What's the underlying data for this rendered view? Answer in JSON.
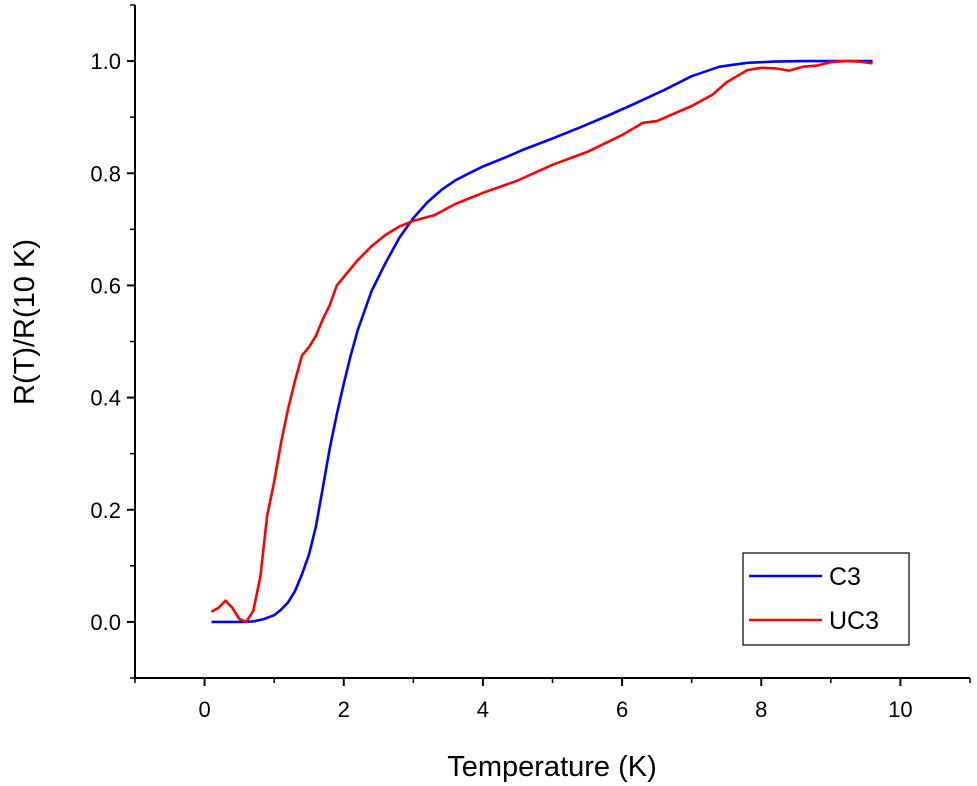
{
  "chart_data": {
    "type": "line",
    "xlabel": "Temperature (K)",
    "ylabel": "R(T)/R(10 K)",
    "xlim": [
      -1,
      11
    ],
    "ylim": [
      -0.1,
      1.1
    ],
    "x_ticks": [
      0,
      2,
      4,
      6,
      8,
      10
    ],
    "x_tick_labels": [
      "0",
      "2",
      "4",
      "6",
      "8",
      "10"
    ],
    "y_ticks": [
      0,
      0.2,
      0.4,
      0.6,
      0.8,
      1.0
    ],
    "y_tick_labels": [
      "0.0",
      "0.2",
      "0.4",
      "0.6",
      "0.8",
      "1.0"
    ],
    "grid": false,
    "legend": "bottom-right",
    "series": [
      {
        "name": "C3",
        "color": "#0000ff",
        "points": [
          [
            0.1,
            0.0
          ],
          [
            0.3,
            0.0
          ],
          [
            0.5,
            0.0
          ],
          [
            0.7,
            0.001
          ],
          [
            0.85,
            0.005
          ],
          [
            1.0,
            0.012
          ],
          [
            1.1,
            0.022
          ],
          [
            1.2,
            0.035
          ],
          [
            1.3,
            0.055
          ],
          [
            1.4,
            0.085
          ],
          [
            1.5,
            0.12
          ],
          [
            1.6,
            0.17
          ],
          [
            1.7,
            0.24
          ],
          [
            1.8,
            0.31
          ],
          [
            1.9,
            0.37
          ],
          [
            2.0,
            0.425
          ],
          [
            2.1,
            0.475
          ],
          [
            2.2,
            0.52
          ],
          [
            2.4,
            0.59
          ],
          [
            2.6,
            0.64
          ],
          [
            2.8,
            0.685
          ],
          [
            3.0,
            0.72
          ],
          [
            3.2,
            0.748
          ],
          [
            3.4,
            0.77
          ],
          [
            3.6,
            0.787
          ],
          [
            3.8,
            0.8
          ],
          [
            4.0,
            0.812
          ],
          [
            4.3,
            0.827
          ],
          [
            4.6,
            0.843
          ],
          [
            5.0,
            0.862
          ],
          [
            5.4,
            0.882
          ],
          [
            5.8,
            0.903
          ],
          [
            6.2,
            0.925
          ],
          [
            6.6,
            0.948
          ],
          [
            7.0,
            0.973
          ],
          [
            7.4,
            0.99
          ],
          [
            7.8,
            0.997
          ],
          [
            8.2,
            0.999
          ],
          [
            8.6,
            1.0
          ],
          [
            9.0,
            1.0
          ],
          [
            9.3,
            1.0
          ],
          [
            9.6,
            1.0
          ]
        ]
      },
      {
        "name": "UC3",
        "color": "#ff0000",
        "points": [
          [
            0.1,
            0.018
          ],
          [
            0.2,
            0.025
          ],
          [
            0.3,
            0.038
          ],
          [
            0.4,
            0.025
          ],
          [
            0.5,
            0.005
          ],
          [
            0.6,
            0.0
          ],
          [
            0.7,
            0.02
          ],
          [
            0.8,
            0.08
          ],
          [
            0.9,
            0.19
          ],
          [
            1.0,
            0.25
          ],
          [
            1.1,
            0.32
          ],
          [
            1.2,
            0.38
          ],
          [
            1.3,
            0.43
          ],
          [
            1.4,
            0.475
          ],
          [
            1.5,
            0.49
          ],
          [
            1.6,
            0.51
          ],
          [
            1.7,
            0.54
          ],
          [
            1.8,
            0.565
          ],
          [
            1.9,
            0.6
          ],
          [
            2.0,
            0.615
          ],
          [
            2.2,
            0.645
          ],
          [
            2.4,
            0.67
          ],
          [
            2.6,
            0.69
          ],
          [
            2.8,
            0.705
          ],
          [
            3.0,
            0.715
          ],
          [
            3.3,
            0.725
          ],
          [
            3.6,
            0.745
          ],
          [
            3.8,
            0.755
          ],
          [
            4.0,
            0.765
          ],
          [
            4.5,
            0.787
          ],
          [
            5.0,
            0.815
          ],
          [
            5.5,
            0.838
          ],
          [
            6.0,
            0.868
          ],
          [
            6.3,
            0.89
          ],
          [
            6.5,
            0.893
          ],
          [
            7.0,
            0.92
          ],
          [
            7.3,
            0.94
          ],
          [
            7.5,
            0.962
          ],
          [
            7.8,
            0.984
          ],
          [
            8.0,
            0.988
          ],
          [
            8.2,
            0.987
          ],
          [
            8.4,
            0.983
          ],
          [
            8.6,
            0.99
          ],
          [
            8.8,
            0.992
          ],
          [
            9.0,
            0.998
          ],
          [
            9.2,
            1.0
          ],
          [
            9.4,
            0.999
          ],
          [
            9.6,
            0.996
          ]
        ]
      }
    ]
  }
}
